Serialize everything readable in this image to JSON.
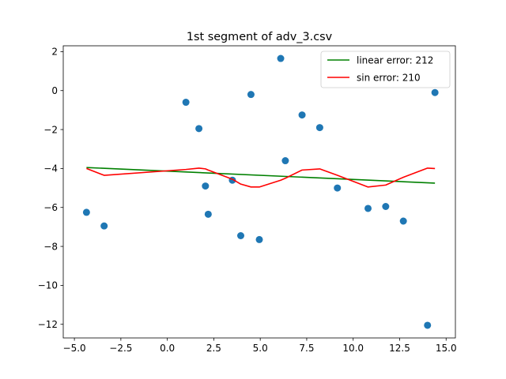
{
  "chart_data": {
    "type": "scatter",
    "title": "1st segment of adv_3.csv",
    "xlabel": "",
    "ylabel": "",
    "xlim": [
      -5.6,
      15.5
    ],
    "ylim": [
      -12.7,
      2.3
    ],
    "grid": false,
    "legend_position": "top-right",
    "x_ticks": [
      -5.0,
      -2.5,
      0.0,
      2.5,
      5.0,
      7.5,
      10.0,
      12.5,
      15.0
    ],
    "x_tick_labels": [
      "−5.0",
      "−2.5",
      "0.0",
      "2.5",
      "5.0",
      "7.5",
      "10.0",
      "12.5",
      "15.0"
    ],
    "y_ticks": [
      2,
      0,
      -2,
      -4,
      -6,
      -8,
      -10,
      -12
    ],
    "y_tick_labels": [
      "2",
      "0",
      "−2",
      "−4",
      "−6",
      "−8",
      "−10",
      "−12"
    ],
    "points": {
      "color": "#1f77b4",
      "x": [
        -4.35,
        -3.4,
        1.0,
        1.7,
        2.05,
        2.2,
        3.5,
        3.95,
        4.5,
        4.95,
        6.1,
        6.35,
        7.25,
        8.2,
        9.15,
        10.8,
        11.75,
        12.7,
        14.0,
        14.4
      ],
      "y": [
        -6.25,
        -6.95,
        -0.6,
        -1.95,
        -4.9,
        -6.35,
        -4.6,
        -7.45,
        -0.2,
        -7.65,
        1.65,
        -3.6,
        -1.25,
        -1.9,
        -5.0,
        -6.05,
        -5.95,
        -6.7,
        -12.05,
        -0.1
      ]
    },
    "series": [
      {
        "name": "linear error: 212",
        "color": "#008000",
        "x": [
          -4.35,
          14.4
        ],
        "y": [
          -3.95,
          -4.75
        ]
      },
      {
        "name": "sin error: 210",
        "color": "#ff0000",
        "x": [
          -4.35,
          -3.4,
          1.0,
          1.7,
          2.05,
          2.2,
          3.5,
          3.95,
          4.5,
          4.95,
          6.1,
          6.35,
          7.25,
          8.2,
          9.15,
          10.8,
          11.75,
          12.7,
          14.0,
          14.4
        ],
        "y": [
          -4.0,
          -4.35,
          -4.05,
          -3.98,
          -4.02,
          -4.08,
          -4.55,
          -4.8,
          -4.95,
          -4.95,
          -4.6,
          -4.5,
          -4.08,
          -4.02,
          -4.35,
          -4.95,
          -4.85,
          -4.45,
          -3.98,
          -4.0
        ]
      }
    ]
  }
}
